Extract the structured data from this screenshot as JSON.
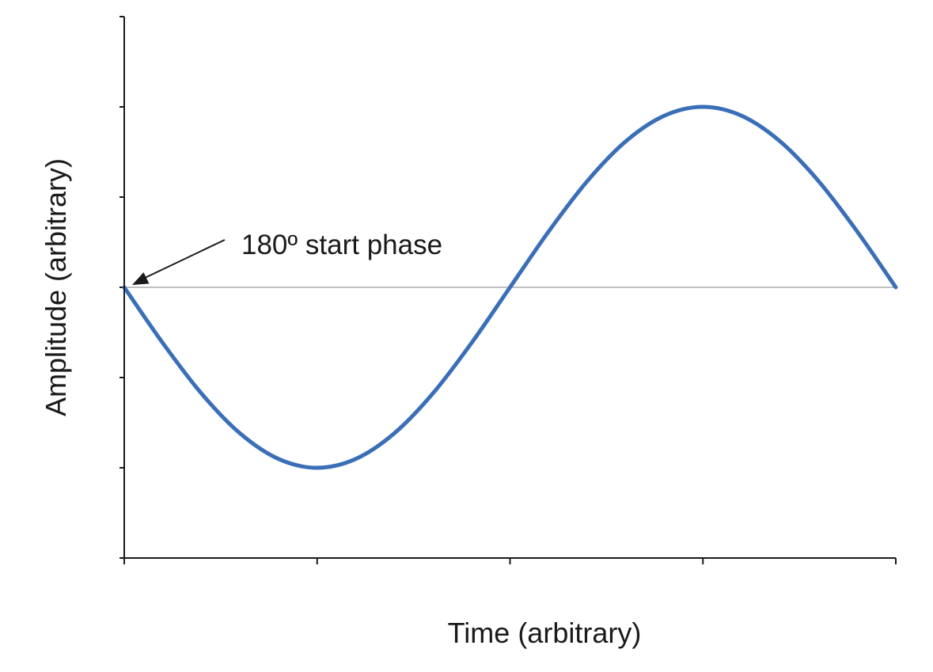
{
  "chart_data": {
    "type": "line",
    "xlabel": "Time (arbitrary)",
    "ylabel": "Amplitude (arbitrary)",
    "xlim": [
      0,
      1
    ],
    "ylim": [
      -3,
      3
    ],
    "x_ticks": [
      0,
      0.25,
      0.5,
      0.75,
      1
    ],
    "y_ticks": [
      -3,
      -2,
      -1,
      0,
      1,
      2,
      3
    ],
    "grid": false,
    "baseline_y": 0,
    "series": [
      {
        "color": "#3a6fb7",
        "x": [
          0,
          0.05,
          0.1,
          0.15,
          0.2,
          0.25,
          0.3,
          0.35,
          0.4,
          0.45,
          0.5,
          0.55,
          0.6,
          0.65,
          0.7,
          0.75,
          0.8,
          0.85,
          0.9,
          0.95,
          1
        ],
        "y": [
          0,
          -0.618,
          -1.176,
          -1.618,
          -1.902,
          -2,
          -1.902,
          -1.618,
          -1.176,
          -0.618,
          0,
          0.618,
          1.176,
          1.618,
          1.902,
          2,
          1.902,
          1.618,
          1.176,
          0.618,
          0
        ]
      }
    ],
    "annotations": [
      {
        "text": "180º start phase",
        "x": 0,
        "y": 0,
        "arrow": true
      }
    ]
  }
}
